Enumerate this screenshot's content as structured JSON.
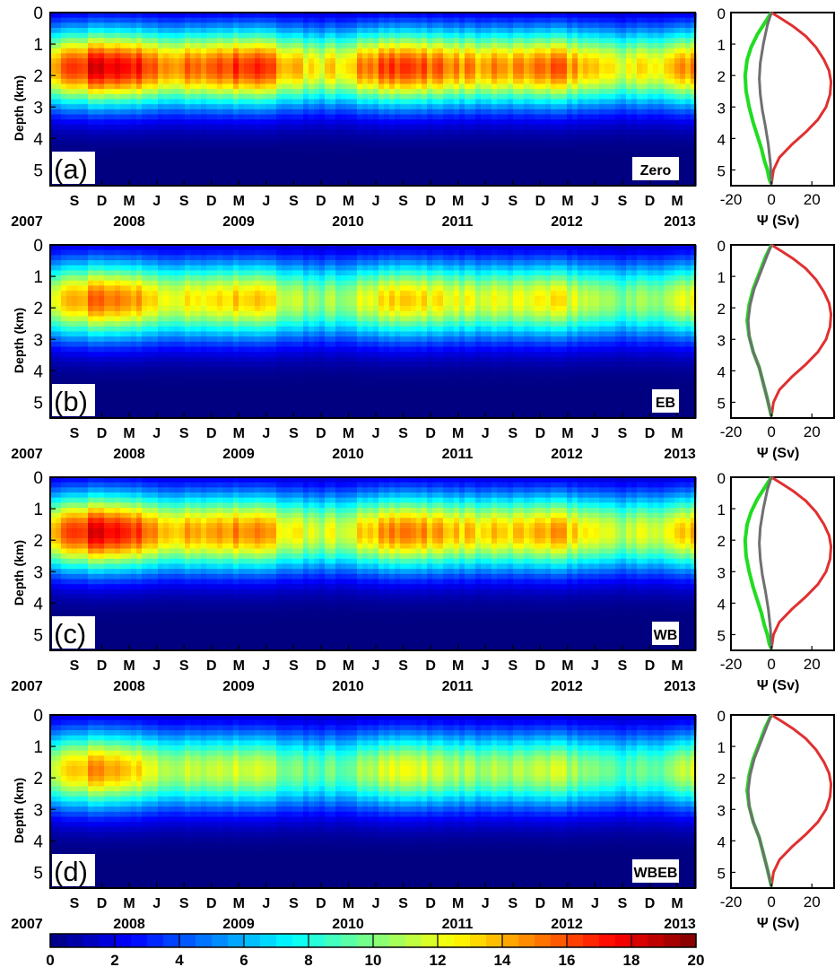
{
  "figure": {
    "colorbar": {
      "ticks": [
        "0",
        "2",
        "4",
        "6",
        "8",
        "10",
        "12",
        "14",
        "16",
        "18",
        "20"
      ]
    }
  },
  "chart_data": [
    {
      "type": "heatmap",
      "panel_label": "(a)",
      "tag": "Zero",
      "ylabel": "Depth (km)",
      "y_ticks": [
        "0",
        "1",
        "2",
        "3",
        "4",
        "5"
      ],
      "ylim": [
        5.5,
        0
      ],
      "month_ticks": [
        "S",
        "D",
        "M",
        "J",
        "S",
        "D",
        "M",
        "J",
        "S",
        "D",
        "M",
        "J",
        "S",
        "D",
        "M",
        "J",
        "S",
        "D",
        "M",
        "J",
        "S",
        "D",
        "M"
      ],
      "year_ticks": [
        "2007",
        "2008",
        "2009",
        "2010",
        "2011",
        "2012",
        "2013"
      ],
      "colormap": "jet",
      "clim": [
        0,
        20
      ],
      "strength": 1.0
    },
    {
      "type": "heatmap",
      "panel_label": "(b)",
      "tag": "EB",
      "ylabel": "Depth (km)",
      "y_ticks": [
        "0",
        "1",
        "2",
        "3",
        "4",
        "5"
      ],
      "ylim": [
        5.5,
        0
      ],
      "month_ticks": [
        "S",
        "D",
        "M",
        "J",
        "S",
        "D",
        "M",
        "J",
        "S",
        "D",
        "M",
        "J",
        "S",
        "D",
        "M",
        "J",
        "S",
        "D",
        "M",
        "J",
        "S",
        "D",
        "M"
      ],
      "year_ticks": [
        "2007",
        "2008",
        "2009",
        "2010",
        "2011",
        "2012",
        "2013"
      ],
      "colormap": "jet",
      "clim": [
        0,
        20
      ],
      "strength": 0.82
    },
    {
      "type": "heatmap",
      "panel_label": "(c)",
      "tag": "WB",
      "ylabel": "Depth (km)",
      "y_ticks": [
        "0",
        "1",
        "2",
        "3",
        "4",
        "5"
      ],
      "ylim": [
        5.5,
        0
      ],
      "month_ticks": [
        "S",
        "D",
        "M",
        "J",
        "S",
        "D",
        "M",
        "J",
        "S",
        "D",
        "M",
        "J",
        "S",
        "D",
        "M",
        "J",
        "S",
        "D",
        "M",
        "J",
        "S",
        "D",
        "M"
      ],
      "year_ticks": [
        "2007",
        "2008",
        "2009",
        "2010",
        "2011",
        "2012",
        "2013"
      ],
      "colormap": "jet",
      "clim": [
        0,
        20
      ],
      "strength": 0.92
    },
    {
      "type": "heatmap",
      "panel_label": "(d)",
      "tag": "WBEB",
      "ylabel": "Depth (km)",
      "y_ticks": [
        "0",
        "1",
        "2",
        "3",
        "4",
        "5"
      ],
      "ylim": [
        5.5,
        0
      ],
      "month_ticks": [
        "S",
        "D",
        "M",
        "J",
        "S",
        "D",
        "M",
        "J",
        "S",
        "D",
        "M",
        "J",
        "S",
        "D",
        "M",
        "J",
        "S",
        "D",
        "M",
        "J",
        "S",
        "D",
        "M"
      ],
      "year_ticks": [
        "2007",
        "2008",
        "2009",
        "2010",
        "2011",
        "2012",
        "2013"
      ],
      "colormap": "jet",
      "clim": [
        0,
        20
      ],
      "strength": 0.74
    },
    {
      "type": "line",
      "panel": "a-profile",
      "xlabel": "Ψ (Sv)",
      "x_ticks": [
        "-20",
        "0",
        "20"
      ],
      "xlim": [
        -20,
        31
      ],
      "ylim": [
        5.5,
        0
      ],
      "series": [
        {
          "color": "#e03030",
          "x": [
            0,
            5,
            11,
            17,
            22,
            26,
            28.5,
            29.5,
            29,
            27,
            23,
            17,
            10,
            4,
            1,
            0
          ],
          "depth": [
            0,
            0.2,
            0.45,
            0.75,
            1.1,
            1.5,
            1.85,
            2.2,
            2.6,
            3.0,
            3.4,
            3.8,
            4.2,
            4.6,
            5.0,
            5.45
          ]
        },
        {
          "color": "#20dd20",
          "x": [
            0,
            -3,
            -7,
            -10,
            -12,
            -13,
            -12.5,
            -11,
            -9,
            -7,
            -5,
            -3.5,
            -2,
            -1,
            0
          ],
          "depth": [
            0,
            0.3,
            0.7,
            1.1,
            1.5,
            2.0,
            2.5,
            3.0,
            3.5,
            3.9,
            4.3,
            4.7,
            5.0,
            5.3,
            5.45
          ]
        },
        {
          "color": "#707070",
          "x": [
            0,
            -2,
            -4,
            -5.5,
            -6,
            -5.5,
            -4.5,
            -3,
            -1.5,
            -0.5,
            0
          ],
          "depth": [
            0,
            0.4,
            1.0,
            1.6,
            2.1,
            2.6,
            3.1,
            3.6,
            4.2,
            4.8,
            5.45
          ]
        }
      ]
    },
    {
      "type": "line",
      "panel": "b-profile",
      "xlabel": "Ψ (Sv)",
      "x_ticks": [
        "-20",
        "0",
        "20"
      ],
      "xlim": [
        -20,
        31
      ],
      "ylim": [
        5.5,
        0
      ],
      "series": [
        {
          "color": "#e03030",
          "x": [
            0,
            5,
            11,
            17,
            22,
            26,
            28.5,
            29.5,
            29,
            27,
            23,
            17,
            10,
            4,
            1,
            0
          ],
          "depth": [
            0,
            0.2,
            0.45,
            0.75,
            1.1,
            1.5,
            1.85,
            2.2,
            2.6,
            3.0,
            3.4,
            3.8,
            4.2,
            4.6,
            5.0,
            5.45
          ]
        },
        {
          "color": "#20dd20",
          "x": [
            0,
            -3,
            -6,
            -9,
            -11,
            -12,
            -11,
            -9,
            -6,
            -4,
            -2,
            0
          ],
          "depth": [
            0,
            0.4,
            0.9,
            1.4,
            1.9,
            2.4,
            2.9,
            3.4,
            3.9,
            4.4,
            4.9,
            5.45
          ]
        },
        {
          "color": "#707070",
          "x": [
            0,
            -2.5,
            -5.5,
            -8.5,
            -10.5,
            -11.5,
            -11,
            -9,
            -6,
            -4,
            -2,
            0
          ],
          "depth": [
            0,
            0.4,
            0.9,
            1.4,
            1.9,
            2.4,
            2.9,
            3.4,
            3.9,
            4.4,
            4.9,
            5.45
          ]
        }
      ]
    },
    {
      "type": "line",
      "panel": "c-profile",
      "xlabel": "Ψ (Sv)",
      "x_ticks": [
        "-20",
        "0",
        "20"
      ],
      "xlim": [
        -20,
        31
      ],
      "ylim": [
        5.5,
        0
      ],
      "series": [
        {
          "color": "#e03030",
          "x": [
            0,
            5,
            11,
            17,
            22,
            26,
            28.5,
            29.5,
            29,
            27,
            23,
            17,
            10,
            4,
            1,
            0
          ],
          "depth": [
            0,
            0.2,
            0.45,
            0.75,
            1.1,
            1.5,
            1.85,
            2.2,
            2.6,
            3.0,
            3.4,
            3.8,
            4.2,
            4.6,
            5.0,
            5.45
          ]
        },
        {
          "color": "#20dd20",
          "x": [
            0,
            -3,
            -7,
            -10,
            -12,
            -13,
            -12.5,
            -11,
            -9,
            -7,
            -5,
            -3.5,
            -2,
            -1,
            0
          ],
          "depth": [
            0,
            0.3,
            0.7,
            1.1,
            1.5,
            2.0,
            2.5,
            3.0,
            3.5,
            3.9,
            4.3,
            4.7,
            5.0,
            5.3,
            5.45
          ]
        },
        {
          "color": "#707070",
          "x": [
            0,
            -2,
            -4,
            -5.5,
            -6,
            -5.5,
            -4.5,
            -3,
            -1.5,
            -0.5,
            0
          ],
          "depth": [
            0,
            0.4,
            1.0,
            1.6,
            2.1,
            2.6,
            3.1,
            3.6,
            4.2,
            4.8,
            5.45
          ]
        }
      ]
    },
    {
      "type": "line",
      "panel": "d-profile",
      "xlabel": "Ψ (Sv)",
      "x_ticks": [
        "-20",
        "0",
        "20"
      ],
      "xlim": [
        -20,
        31
      ],
      "ylim": [
        5.5,
        0
      ],
      "series": [
        {
          "color": "#e03030",
          "x": [
            0,
            5,
            11,
            17,
            22,
            26,
            28.5,
            29.5,
            29,
            27,
            23,
            17,
            10,
            4,
            1,
            0
          ],
          "depth": [
            0,
            0.2,
            0.45,
            0.75,
            1.1,
            1.5,
            1.85,
            2.2,
            2.6,
            3.0,
            3.4,
            3.8,
            4.2,
            4.6,
            5.0,
            5.45
          ]
        },
        {
          "color": "#20dd20",
          "x": [
            0,
            -3,
            -6,
            -9,
            -11,
            -12,
            -11,
            -9,
            -6,
            -4,
            -2,
            0
          ],
          "depth": [
            0,
            0.4,
            0.9,
            1.4,
            1.9,
            2.4,
            2.9,
            3.4,
            3.9,
            4.4,
            4.9,
            5.45
          ]
        },
        {
          "color": "#707070",
          "x": [
            0,
            -2.5,
            -5.5,
            -8.5,
            -10.5,
            -11.5,
            -11,
            -9,
            -6,
            -4,
            -2,
            0
          ],
          "depth": [
            0,
            0.4,
            0.9,
            1.4,
            1.9,
            2.4,
            2.9,
            3.4,
            3.9,
            4.4,
            4.9,
            5.45
          ]
        }
      ]
    }
  ]
}
